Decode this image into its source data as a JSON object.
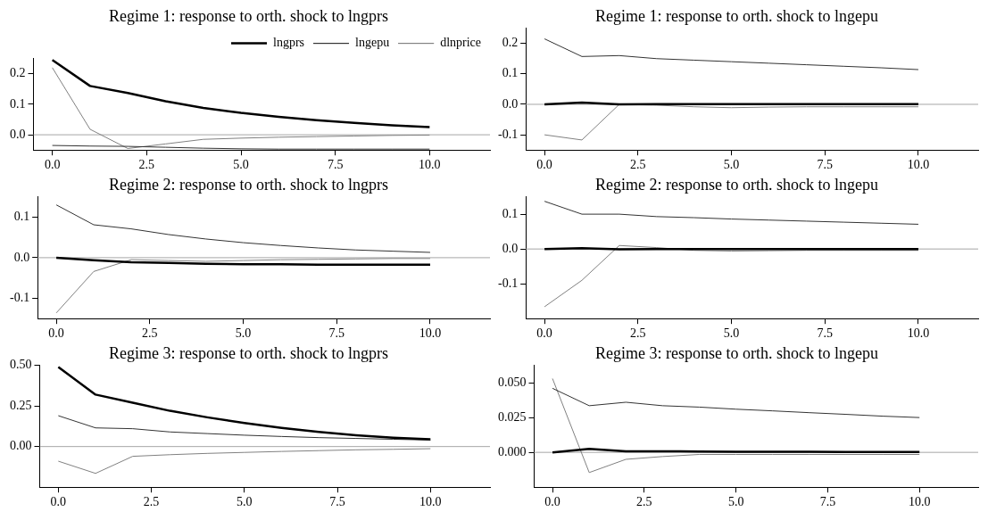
{
  "chart_data": [
    {
      "type": "line",
      "title": "Regime 1: response to orth. shock to lngprs",
      "x": [
        0,
        1,
        2,
        3,
        4,
        5,
        6,
        7,
        8,
        9,
        10
      ],
      "xlim": [
        -0.5,
        11.6
      ],
      "xticks": [
        {
          "value": 0,
          "label": "0.0"
        },
        {
          "value": 2.5,
          "label": "2.5"
        },
        {
          "value": 5,
          "label": "5.0"
        },
        {
          "value": 7.5,
          "label": "7.5"
        },
        {
          "value": 10,
          "label": "10.0"
        }
      ],
      "ylim": [
        -0.05,
        0.25
      ],
      "yticks": [
        {
          "value": 0,
          "label": "0.0"
        },
        {
          "value": 0.1,
          "label": "0.1"
        },
        {
          "value": 0.2,
          "label": "0.2"
        }
      ],
      "grid": false,
      "legend": "top right",
      "ref_lines": [
        {
          "axis": "y",
          "value": 0,
          "color": "#a6a6a6"
        }
      ],
      "series": [
        {
          "name": "lngprs",
          "color": "#000000",
          "values": [
            0.245,
            0.16,
            0.137,
            0.11,
            0.088,
            0.072,
            0.059,
            0.048,
            0.039,
            0.031,
            0.025
          ]
        },
        {
          "name": "lngepu",
          "color": "#333333",
          "values": [
            -0.035,
            -0.037,
            -0.038,
            -0.041,
            -0.044,
            -0.046,
            -0.047,
            -0.047,
            -0.047,
            -0.047,
            -0.047
          ]
        },
        {
          "name": "dlnprice",
          "color": "#808080",
          "values": [
            0.22,
            0.018,
            -0.045,
            -0.03,
            -0.015,
            -0.011,
            -0.008,
            -0.006,
            -0.004,
            -0.002,
            -0.001
          ]
        }
      ]
    },
    {
      "type": "line",
      "title": "Regime 1: response to orth. shock to lngepu",
      "x": [
        0,
        1,
        2,
        3,
        4,
        5,
        6,
        7,
        8,
        9,
        10
      ],
      "xlim": [
        -0.5,
        11.6
      ],
      "xticks": [
        {
          "value": 0,
          "label": "0.0"
        },
        {
          "value": 2.5,
          "label": "2.5"
        },
        {
          "value": 5,
          "label": "5.0"
        },
        {
          "value": 7.5,
          "label": "7.5"
        },
        {
          "value": 10,
          "label": "10.0"
        }
      ],
      "ylim": [
        -0.15,
        0.25
      ],
      "yticks": [
        {
          "value": -0.1,
          "label": "-0.1"
        },
        {
          "value": 0,
          "label": "0.0"
        },
        {
          "value": 0.1,
          "label": "0.1"
        },
        {
          "value": 0.2,
          "label": "0.2"
        }
      ],
      "grid": false,
      "legend": false,
      "ref_lines": [
        {
          "axis": "y",
          "value": 0,
          "color": "#a6a6a6"
        }
      ],
      "series": [
        {
          "color": "#000000",
          "values": [
            0,
            0.006,
            0,
            0.001,
            0.001,
            0.001,
            0.001,
            0.001,
            0.001,
            0.001,
            0.001
          ]
        },
        {
          "color": "#333333",
          "values": [
            0.215,
            0.157,
            0.16,
            0.15,
            0.145,
            0.14,
            0.135,
            0.13,
            0.125,
            0.12,
            0.114
          ]
        },
        {
          "color": "#808080",
          "values": [
            -0.1,
            -0.117,
            0,
            -0.003,
            -0.008,
            -0.011,
            -0.009,
            -0.008,
            -0.008,
            -0.008,
            -0.008
          ]
        }
      ]
    },
    {
      "type": "line",
      "title": "Regime 2: response to orth. shock to lngprs",
      "x": [
        0,
        1,
        2,
        3,
        4,
        5,
        6,
        7,
        8,
        9,
        10
      ],
      "xlim": [
        -0.5,
        11.6
      ],
      "xticks": [
        {
          "value": 0,
          "label": "0.0"
        },
        {
          "value": 2.5,
          "label": "2.5"
        },
        {
          "value": 5,
          "label": "5.0"
        },
        {
          "value": 7.5,
          "label": "7.5"
        },
        {
          "value": 10,
          "label": "10.0"
        }
      ],
      "ylim": [
        -0.15,
        0.15
      ],
      "yticks": [
        {
          "value": -0.1,
          "label": "-0.1"
        },
        {
          "value": 0,
          "label": "0.0"
        },
        {
          "value": 0.1,
          "label": "0.1"
        }
      ],
      "grid": false,
      "legend": false,
      "ref_lines": [
        {
          "axis": "y",
          "value": 0,
          "color": "#a6a6a6"
        }
      ],
      "series": [
        {
          "color": "#000000",
          "values": [
            0,
            -0.006,
            -0.011,
            -0.013,
            -0.015,
            -0.016,
            -0.016,
            -0.017,
            -0.017,
            -0.017,
            -0.017
          ]
        },
        {
          "color": "#333333",
          "values": [
            0.13,
            0.081,
            0.071,
            0.057,
            0.046,
            0.037,
            0.03,
            0.024,
            0.019,
            0.016,
            0.013
          ]
        },
        {
          "color": "#808080",
          "values": [
            -0.136,
            -0.034,
            -0.005,
            -0.007,
            -0.009,
            -0.007,
            -0.005,
            -0.004,
            -0.003,
            -0.002,
            -0.002
          ]
        }
      ]
    },
    {
      "type": "line",
      "title": "Regime 2: response to orth. shock to lngepu",
      "x": [
        0,
        1,
        2,
        3,
        4,
        5,
        6,
        7,
        8,
        9,
        10
      ],
      "xlim": [
        -0.5,
        11.6
      ],
      "xticks": [
        {
          "value": 0,
          "label": "0.0"
        },
        {
          "value": 2.5,
          "label": "2.5"
        },
        {
          "value": 5,
          "label": "5.0"
        },
        {
          "value": 7.5,
          "label": "7.5"
        },
        {
          "value": 10,
          "label": "10.0"
        }
      ],
      "ylim": [
        -0.2,
        0.15
      ],
      "yticks": [
        {
          "value": -0.1,
          "label": "-0.1"
        },
        {
          "value": 0,
          "label": "0.0"
        },
        {
          "value": 0.1,
          "label": "0.1"
        }
      ],
      "grid": false,
      "legend": false,
      "ref_lines": [
        {
          "axis": "y",
          "value": 0,
          "color": "#a6a6a6"
        }
      ],
      "series": [
        {
          "color": "#000000",
          "values": [
            0,
            0.002,
            -0.001,
            0,
            0,
            0,
            0,
            0,
            0,
            0,
            0
          ]
        },
        {
          "color": "#333333",
          "values": [
            0.137,
            0.1,
            0.1,
            0.093,
            0.09,
            0.086,
            0.083,
            0.08,
            0.077,
            0.074,
            0.071
          ]
        },
        {
          "color": "#808080",
          "values": [
            -0.166,
            -0.09,
            0.01,
            0.004,
            -0.004,
            -0.006,
            -0.005,
            -0.004,
            -0.004,
            -0.004,
            -0.004
          ]
        }
      ]
    },
    {
      "type": "line",
      "title": "Regime 3: response to orth. shock to lngprs",
      "x": [
        0,
        1,
        2,
        3,
        4,
        5,
        6,
        7,
        8,
        9,
        10
      ],
      "xlim": [
        -0.5,
        11.6
      ],
      "xticks": [
        {
          "value": 0,
          "label": "0.0"
        },
        {
          "value": 2.5,
          "label": "2.5"
        },
        {
          "value": 5,
          "label": "5.0"
        },
        {
          "value": 7.5,
          "label": "7.5"
        },
        {
          "value": 10,
          "label": "10.0"
        }
      ],
      "ylim": [
        -0.25,
        0.5
      ],
      "yticks": [
        {
          "value": 0,
          "label": "0.00"
        },
        {
          "value": 0.25,
          "label": "0.25"
        },
        {
          "value": 0.5,
          "label": "0.50"
        }
      ],
      "grid": false,
      "legend": false,
      "ref_lines": [
        {
          "axis": "y",
          "value": 0,
          "color": "#a6a6a6"
        }
      ],
      "series": [
        {
          "color": "#000000",
          "values": [
            0.49,
            0.32,
            0.27,
            0.22,
            0.18,
            0.145,
            0.115,
            0.09,
            0.07,
            0.055,
            0.045
          ]
        },
        {
          "color": "#333333",
          "values": [
            0.19,
            0.115,
            0.11,
            0.09,
            0.08,
            0.07,
            0.062,
            0.055,
            0.05,
            0.045,
            0.04
          ]
        },
        {
          "color": "#808080",
          "values": [
            -0.09,
            -0.165,
            -0.06,
            -0.05,
            -0.042,
            -0.036,
            -0.03,
            -0.025,
            -0.02,
            -0.017,
            -0.013
          ]
        }
      ]
    },
    {
      "type": "line",
      "title": "Regime 3: response to orth. shock to lngepu",
      "x": [
        0,
        1,
        2,
        3,
        4,
        5,
        6,
        7,
        8,
        9,
        10
      ],
      "xlim": [
        -0.5,
        11.6
      ],
      "xticks": [
        {
          "value": 0,
          "label": "0.0"
        },
        {
          "value": 2.5,
          "label": "2.5"
        },
        {
          "value": 5,
          "label": "5.0"
        },
        {
          "value": 7.5,
          "label": "7.5"
        },
        {
          "value": 10,
          "label": "10.0"
        }
      ],
      "ylim": [
        -0.025,
        0.0625
      ],
      "yticks": [
        {
          "value": 0,
          "label": "0.000"
        },
        {
          "value": 0.025,
          "label": "0.025"
        },
        {
          "value": 0.05,
          "label": "0.050"
        }
      ],
      "grid": false,
      "legend": false,
      "ref_lines": [
        {
          "axis": "y",
          "value": 0,
          "color": "#a6a6a6"
        }
      ],
      "series": [
        {
          "color": "#000000",
          "values": [
            0,
            0.0025,
            0.0008,
            0.0008,
            0.0006,
            0.0005,
            0.0004,
            0.0004,
            0.0003,
            0.0003,
            0.0003
          ]
        },
        {
          "color": "#333333",
          "values": [
            0.046,
            0.0335,
            0.036,
            0.0335,
            0.0325,
            0.031,
            0.0298,
            0.0285,
            0.0273,
            0.026,
            0.025
          ]
        },
        {
          "color": "#808080",
          "values": [
            0.053,
            -0.0145,
            -0.005,
            -0.003,
            -0.0015,
            -0.0015,
            -0.0015,
            -0.0015,
            -0.0015,
            -0.0015,
            -0.0015
          ]
        }
      ]
    }
  ]
}
